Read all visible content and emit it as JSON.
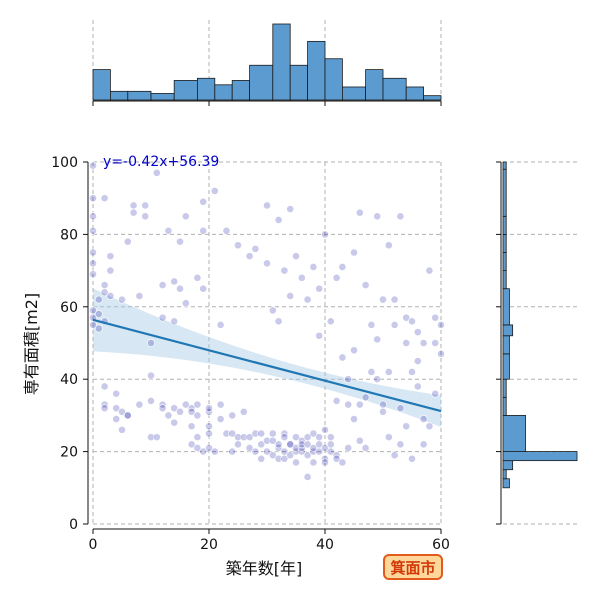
{
  "chart_data": {
    "type": "scatter",
    "title": "",
    "xlabel": "築年数[年]",
    "ylabel": "専有面積[m2]",
    "xlim": [
      0,
      60
    ],
    "ylim": [
      0,
      100
    ],
    "xticks": [
      0,
      20,
      40,
      60
    ],
    "yticks": [
      0,
      20,
      40,
      60,
      80,
      100
    ],
    "grid": true,
    "regression": {
      "label": "y=-0.42x+56.39",
      "slope": -0.42,
      "intercept": 56.39
    },
    "badge": "箕面市",
    "colors": {
      "points": "#0a0aa0",
      "line": "#1f77b4",
      "band": "#a9c9e6",
      "hist": "#5b9bd0",
      "badge_fill": "#ffd79a",
      "badge_border": "#e25b1a",
      "badge_text": "#d23a0a",
      "equation": "#0000c8"
    },
    "x_hist": {
      "bin_edges": [
        0,
        3,
        6,
        10,
        14,
        18,
        21,
        24,
        27,
        31,
        34,
        37,
        40,
        43,
        47,
        50,
        54,
        57,
        60
      ],
      "counts": [
        14,
        4,
        4,
        3,
        9,
        10,
        7,
        9,
        16,
        35,
        16,
        27,
        19,
        6,
        14,
        10,
        6,
        2
      ]
    },
    "y_hist": {
      "bin_edges": [
        10,
        12.5,
        15,
        17.5,
        20,
        30,
        35,
        40,
        47,
        52,
        55,
        65,
        70,
        75,
        80,
        85,
        98,
        100
      ],
      "counts": [
        2,
        1,
        3,
        23,
        7,
        1,
        1,
        2,
        2,
        3,
        2,
        1,
        1,
        1,
        1,
        1,
        1
      ]
    },
    "points": [
      [
        0,
        99
      ],
      [
        0,
        90
      ],
      [
        0,
        85
      ],
      [
        0,
        81
      ],
      [
        0,
        75
      ],
      [
        0,
        72
      ],
      [
        0,
        69
      ],
      [
        0,
        59
      ],
      [
        0,
        57
      ],
      [
        0,
        55
      ],
      [
        1,
        58
      ],
      [
        1,
        62
      ],
      [
        1,
        54
      ],
      [
        2,
        64
      ],
      [
        2,
        56
      ],
      [
        2,
        66
      ],
      [
        2,
        38
      ],
      [
        2,
        33
      ],
      [
        2,
        32
      ],
      [
        2,
        90
      ],
      [
        3,
        70
      ],
      [
        3,
        63
      ],
      [
        3,
        74
      ],
      [
        4,
        32
      ],
      [
        4,
        36
      ],
      [
        4,
        29
      ],
      [
        5,
        62
      ],
      [
        5,
        31
      ],
      [
        5,
        26
      ],
      [
        6,
        30
      ],
      [
        6,
        78
      ],
      [
        6,
        30
      ],
      [
        7,
        86
      ],
      [
        7,
        88
      ],
      [
        8,
        33
      ],
      [
        8,
        63
      ],
      [
        9,
        88
      ],
      [
        9,
        85
      ],
      [
        10,
        34
      ],
      [
        10,
        24
      ],
      [
        10,
        41
      ],
      [
        10,
        50
      ],
      [
        11,
        97
      ],
      [
        11,
        24
      ],
      [
        12,
        66
      ],
      [
        12,
        33
      ],
      [
        12,
        32
      ],
      [
        12,
        57
      ],
      [
        13,
        30
      ],
      [
        13,
        81
      ],
      [
        14,
        67
      ],
      [
        14,
        32
      ],
      [
        14,
        28
      ],
      [
        14,
        56
      ],
      [
        15,
        31
      ],
      [
        15,
        78
      ],
      [
        15,
        65
      ],
      [
        16,
        85
      ],
      [
        16,
        61
      ],
      [
        16,
        33
      ],
      [
        17,
        27
      ],
      [
        17,
        32
      ],
      [
        17,
        22
      ],
      [
        17,
        31
      ],
      [
        18,
        24
      ],
      [
        18,
        30
      ],
      [
        18,
        21
      ],
      [
        18,
        68
      ],
      [
        18,
        33
      ],
      [
        19,
        89
      ],
      [
        19,
        81
      ],
      [
        19,
        20
      ],
      [
        19,
        65
      ],
      [
        20,
        31
      ],
      [
        20,
        25
      ],
      [
        20,
        21
      ],
      [
        20,
        27
      ],
      [
        20,
        32
      ],
      [
        21,
        92
      ],
      [
        21,
        20
      ],
      [
        22,
        33
      ],
      [
        22,
        29
      ],
      [
        22,
        55
      ],
      [
        23,
        81
      ],
      [
        23,
        25
      ],
      [
        24,
        25
      ],
      [
        24,
        20
      ],
      [
        24,
        30
      ],
      [
        25,
        77
      ],
      [
        25,
        24
      ],
      [
        25,
        22
      ],
      [
        26,
        31
      ],
      [
        26,
        24
      ],
      [
        27,
        21
      ],
      [
        27,
        24
      ],
      [
        27,
        74
      ],
      [
        28,
        20
      ],
      [
        28,
        25
      ],
      [
        28,
        76
      ],
      [
        29,
        18
      ],
      [
        29,
        22
      ],
      [
        29,
        25
      ],
      [
        30,
        23
      ],
      [
        30,
        20
      ],
      [
        30,
        88
      ],
      [
        30,
        72
      ],
      [
        31,
        19
      ],
      [
        31,
        25
      ],
      [
        31,
        23
      ],
      [
        31,
        59
      ],
      [
        32,
        21
      ],
      [
        32,
        22
      ],
      [
        32,
        18
      ],
      [
        32,
        84
      ],
      [
        32,
        56
      ],
      [
        33,
        20
      ],
      [
        33,
        25
      ],
      [
        33,
        18
      ],
      [
        33,
        24
      ],
      [
        33,
        70
      ],
      [
        34,
        19
      ],
      [
        34,
        22
      ],
      [
        34,
        22
      ],
      [
        34,
        87
      ],
      [
        34,
        63
      ],
      [
        35,
        24
      ],
      [
        35,
        20
      ],
      [
        35,
        17
      ],
      [
        35,
        21
      ],
      [
        35,
        74
      ],
      [
        36,
        23
      ],
      [
        36,
        20
      ],
      [
        36,
        21
      ],
      [
        36,
        22
      ],
      [
        36,
        68
      ],
      [
        37,
        19
      ],
      [
        37,
        22
      ],
      [
        37,
        24
      ],
      [
        37,
        62
      ],
      [
        37,
        13
      ],
      [
        38,
        20
      ],
      [
        38,
        21
      ],
      [
        38,
        17
      ],
      [
        38,
        25
      ],
      [
        38,
        71
      ],
      [
        39,
        24
      ],
      [
        39,
        20
      ],
      [
        39,
        22
      ],
      [
        39,
        52
      ],
      [
        39,
        65
      ],
      [
        40,
        21
      ],
      [
        40,
        18
      ],
      [
        40,
        17
      ],
      [
        40,
        26
      ],
      [
        40,
        80
      ],
      [
        41,
        22
      ],
      [
        41,
        20
      ],
      [
        41,
        56
      ],
      [
        41,
        24
      ],
      [
        42,
        68
      ],
      [
        42,
        19
      ],
      [
        42,
        18
      ],
      [
        42,
        34
      ],
      [
        43,
        71
      ],
      [
        43,
        17
      ],
      [
        43,
        46
      ],
      [
        44,
        21
      ],
      [
        44,
        33
      ],
      [
        44,
        40
      ],
      [
        45,
        29
      ],
      [
        45,
        48
      ],
      [
        45,
        75
      ],
      [
        46,
        86
      ],
      [
        46,
        33
      ],
      [
        46,
        23
      ],
      [
        47,
        66
      ],
      [
        47,
        21
      ],
      [
        47,
        35
      ],
      [
        48,
        42
      ],
      [
        48,
        55
      ],
      [
        49,
        51
      ],
      [
        49,
        85
      ],
      [
        49,
        40
      ],
      [
        50,
        62
      ],
      [
        50,
        33
      ],
      [
        50,
        31
      ],
      [
        51,
        77
      ],
      [
        51,
        42
      ],
      [
        51,
        24
      ],
      [
        52,
        55
      ],
      [
        52,
        62
      ],
      [
        52,
        19
      ],
      [
        53,
        85
      ],
      [
        53,
        32
      ],
      [
        53,
        22
      ],
      [
        54,
        57
      ],
      [
        54,
        50
      ],
      [
        54,
        27
      ],
      [
        55,
        56
      ],
      [
        55,
        42
      ],
      [
        55,
        18
      ],
      [
        56,
        45
      ],
      [
        56,
        53
      ],
      [
        56,
        38
      ],
      [
        57,
        29
      ],
      [
        57,
        50
      ],
      [
        57,
        22
      ],
      [
        58,
        70
      ],
      [
        58,
        27
      ],
      [
        59,
        57
      ],
      [
        59,
        50
      ],
      [
        59,
        36
      ],
      [
        60,
        55
      ],
      [
        60,
        47
      ]
    ]
  }
}
